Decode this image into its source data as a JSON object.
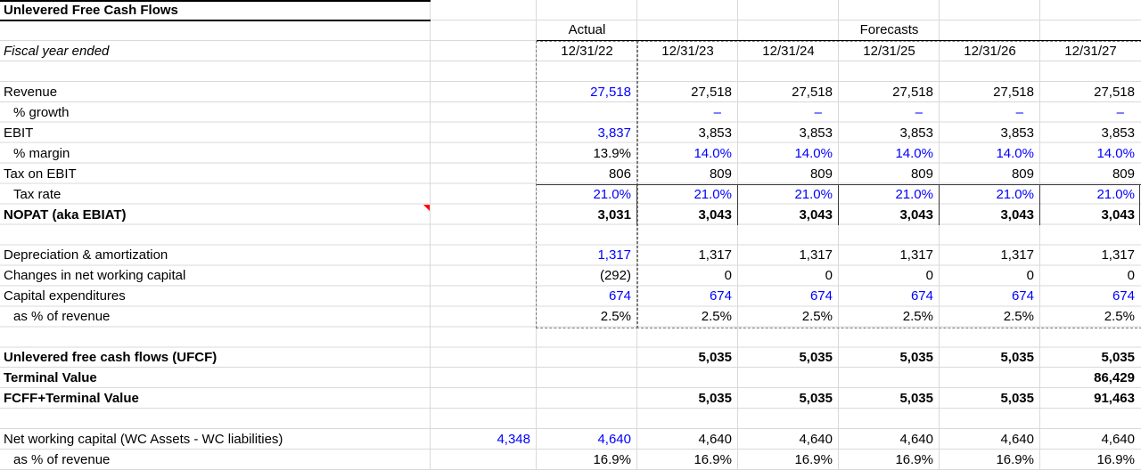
{
  "title": "Unlevered Free Cash Flows",
  "header": {
    "actual": "Actual",
    "forecasts": "Forecasts",
    "fiscal_year_label": "Fiscal year ended",
    "dates": [
      "12/31/22",
      "12/31/23",
      "12/31/24",
      "12/31/25",
      "12/31/26",
      "12/31/27"
    ]
  },
  "colors": {
    "input_blue": "#0000FF",
    "text_black": "#000000",
    "gridline_gray": "#D9D9D9",
    "comment_marker_red": "#FF0000"
  },
  "rows": [
    {
      "key": "spacer-1",
      "label": null
    },
    {
      "key": "revenue",
      "label": "Revenue",
      "cells": [
        {
          "col": "a",
          "text": "27,518",
          "blue": true
        },
        {
          "col": "f1",
          "text": "27,518"
        },
        {
          "col": "f2",
          "text": "27,518"
        },
        {
          "col": "f3",
          "text": "27,518"
        },
        {
          "col": "f4",
          "text": "27,518"
        },
        {
          "col": "f5",
          "text": "27,518"
        }
      ]
    },
    {
      "key": "pct-growth",
      "label": "% growth",
      "indent": true,
      "cells": [
        {
          "col": "f1",
          "text": "–",
          "blue": true,
          "dash": true
        },
        {
          "col": "f2",
          "text": "–",
          "blue": true,
          "dash": true
        },
        {
          "col": "f3",
          "text": "–",
          "blue": true,
          "dash": true
        },
        {
          "col": "f4",
          "text": "–",
          "blue": true,
          "dash": true
        },
        {
          "col": "f5",
          "text": "–",
          "blue": true,
          "dash": true
        }
      ]
    },
    {
      "key": "ebit",
      "label": "EBIT",
      "cells": [
        {
          "col": "a",
          "text": "3,837",
          "blue": true
        },
        {
          "col": "f1",
          "text": "3,853"
        },
        {
          "col": "f2",
          "text": "3,853"
        },
        {
          "col": "f3",
          "text": "3,853"
        },
        {
          "col": "f4",
          "text": "3,853"
        },
        {
          "col": "f5",
          "text": "3,853"
        }
      ]
    },
    {
      "key": "pct-margin",
      "label": "% margin",
      "indent": true,
      "cells": [
        {
          "col": "a",
          "text": "13.9%"
        },
        {
          "col": "f1",
          "text": "14.0%",
          "blue": true
        },
        {
          "col": "f2",
          "text": "14.0%",
          "blue": true
        },
        {
          "col": "f3",
          "text": "14.0%",
          "blue": true
        },
        {
          "col": "f4",
          "text": "14.0%",
          "blue": true
        },
        {
          "col": "f5",
          "text": "14.0%",
          "blue": true
        }
      ]
    },
    {
      "key": "tax-on-ebit",
      "label": "Tax on EBIT",
      "cells": [
        {
          "col": "a",
          "text": "806"
        },
        {
          "col": "f1",
          "text": "809"
        },
        {
          "col": "f2",
          "text": "809"
        },
        {
          "col": "f3",
          "text": "809"
        },
        {
          "col": "f4",
          "text": "809"
        },
        {
          "col": "f5",
          "text": "809"
        }
      ]
    },
    {
      "key": "tax-rate",
      "label": "Tax rate",
      "indent": true,
      "cells": [
        {
          "col": "a",
          "text": "21.0%",
          "blue": true
        },
        {
          "col": "f1",
          "text": "21.0%",
          "blue": true
        },
        {
          "col": "f2",
          "text": "21.0%",
          "blue": true
        },
        {
          "col": "f3",
          "text": "21.0%",
          "blue": true
        },
        {
          "col": "f4",
          "text": "21.0%",
          "blue": true
        },
        {
          "col": "f5",
          "text": "21.0%",
          "blue": true
        }
      ]
    },
    {
      "key": "nopat",
      "label": "NOPAT (aka EBIAT)",
      "bold": true,
      "has_comment": true,
      "cells": [
        {
          "col": "a",
          "text": "3,031"
        },
        {
          "col": "f1",
          "text": "3,043"
        },
        {
          "col": "f2",
          "text": "3,043"
        },
        {
          "col": "f3",
          "text": "3,043"
        },
        {
          "col": "f4",
          "text": "3,043"
        },
        {
          "col": "f5",
          "text": "3,043"
        }
      ]
    },
    {
      "key": "spacer-2",
      "label": null
    },
    {
      "key": "depreciation-amortization",
      "label": "Depreciation & amortization",
      "cells": [
        {
          "col": "a",
          "text": "1,317",
          "blue": true
        },
        {
          "col": "f1",
          "text": "1,317"
        },
        {
          "col": "f2",
          "text": "1,317"
        },
        {
          "col": "f3",
          "text": "1,317"
        },
        {
          "col": "f4",
          "text": "1,317"
        },
        {
          "col": "f5",
          "text": "1,317"
        }
      ]
    },
    {
      "key": "changes-in-nwc",
      "label": "Changes in net working capital",
      "cells": [
        {
          "col": "a",
          "text": "(292)"
        },
        {
          "col": "f1",
          "text": "0"
        },
        {
          "col": "f2",
          "text": "0"
        },
        {
          "col": "f3",
          "text": "0"
        },
        {
          "col": "f4",
          "text": "0"
        },
        {
          "col": "f5",
          "text": "0"
        }
      ]
    },
    {
      "key": "capital-expenditures",
      "label": "Capital expenditures",
      "cells": [
        {
          "col": "a",
          "text": "674",
          "blue": true
        },
        {
          "col": "f1",
          "text": "674",
          "blue": true
        },
        {
          "col": "f2",
          "text": "674",
          "blue": true
        },
        {
          "col": "f3",
          "text": "674",
          "blue": true
        },
        {
          "col": "f4",
          "text": "674",
          "blue": true
        },
        {
          "col": "f5",
          "text": "674",
          "blue": true
        }
      ]
    },
    {
      "key": "capex-pct-revenue",
      "label": "as % of revenue",
      "indent": true,
      "cells": [
        {
          "col": "a",
          "text": "2.5%"
        },
        {
          "col": "f1",
          "text": "2.5%"
        },
        {
          "col": "f2",
          "text": "2.5%"
        },
        {
          "col": "f3",
          "text": "2.5%"
        },
        {
          "col": "f4",
          "text": "2.5%"
        },
        {
          "col": "f5",
          "text": "2.5%"
        }
      ]
    },
    {
      "key": "spacer-3",
      "label": null
    },
    {
      "key": "ufcf",
      "label": "Unlevered free cash flows (UFCF)",
      "bold": true,
      "cells": [
        {
          "col": "f1",
          "text": "5,035"
        },
        {
          "col": "f2",
          "text": "5,035"
        },
        {
          "col": "f3",
          "text": "5,035"
        },
        {
          "col": "f4",
          "text": "5,035"
        },
        {
          "col": "f5",
          "text": "5,035"
        }
      ]
    },
    {
      "key": "terminal-value",
      "label": "Terminal Value",
      "bold": true,
      "cells": [
        {
          "col": "f5",
          "text": "86,429"
        }
      ]
    },
    {
      "key": "fcff-plus-terminal-value",
      "label": "FCFF+Terminal Value",
      "bold": true,
      "cells": [
        {
          "col": "f1",
          "text": "5,035"
        },
        {
          "col": "f2",
          "text": "5,035"
        },
        {
          "col": "f3",
          "text": "5,035"
        },
        {
          "col": "f4",
          "text": "5,035"
        },
        {
          "col": "f5",
          "text": "91,463"
        }
      ]
    },
    {
      "key": "spacer-4",
      "label": null
    },
    {
      "key": "net-working-capital",
      "label": "Net working capital (WC Assets - WC liabilities)",
      "cells": [
        {
          "col": "b",
          "text": "4,348",
          "blue": true
        },
        {
          "col": "a",
          "text": "4,640",
          "blue": true
        },
        {
          "col": "f1",
          "text": "4,640"
        },
        {
          "col": "f2",
          "text": "4,640"
        },
        {
          "col": "f3",
          "text": "4,640"
        },
        {
          "col": "f4",
          "text": "4,640"
        },
        {
          "col": "f5",
          "text": "4,640"
        }
      ]
    },
    {
      "key": "nwc-pct-revenue",
      "label": "as % of revenue",
      "indent": true,
      "cells": [
        {
          "col": "a",
          "text": "16.9%"
        },
        {
          "col": "f1",
          "text": "16.9%"
        },
        {
          "col": "f2",
          "text": "16.9%"
        },
        {
          "col": "f3",
          "text": "16.9%"
        },
        {
          "col": "f4",
          "text": "16.9%"
        },
        {
          "col": "f5",
          "text": "16.9%"
        }
      ]
    }
  ]
}
